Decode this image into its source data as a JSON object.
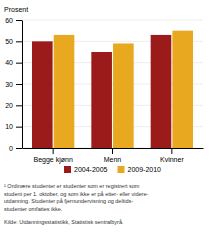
{
  "chart_data": {
    "type": "bar",
    "ylabel": "Prosent",
    "categories": [
      "Begge kjønn",
      "Menn",
      "Kvinner"
    ],
    "series": [
      {
        "name": "2004-2005",
        "color": "#9B1B1B",
        "values": [
          50,
          45,
          53
        ]
      },
      {
        "name": "2009-2010",
        "color": "#E8A820",
        "values": [
          53,
          49,
          55
        ]
      }
    ],
    "ylim": [
      0,
      60
    ],
    "yticks": [
      0,
      10,
      20,
      30,
      40,
      50,
      60
    ],
    "grid": true,
    "legend": "bottom",
    "annotations": [
      "¹ Ordinære studenter er studenter som er registrert som",
      "student per 1. oktober, og som ikke er på etter- eller videre-",
      "utdanning. Studenter på fjernundervisning og deltids-",
      "studenter omfattes ikke.",
      "Kilde: Utdanningsstatistikk, Statistisk sentralbyrå."
    ]
  }
}
